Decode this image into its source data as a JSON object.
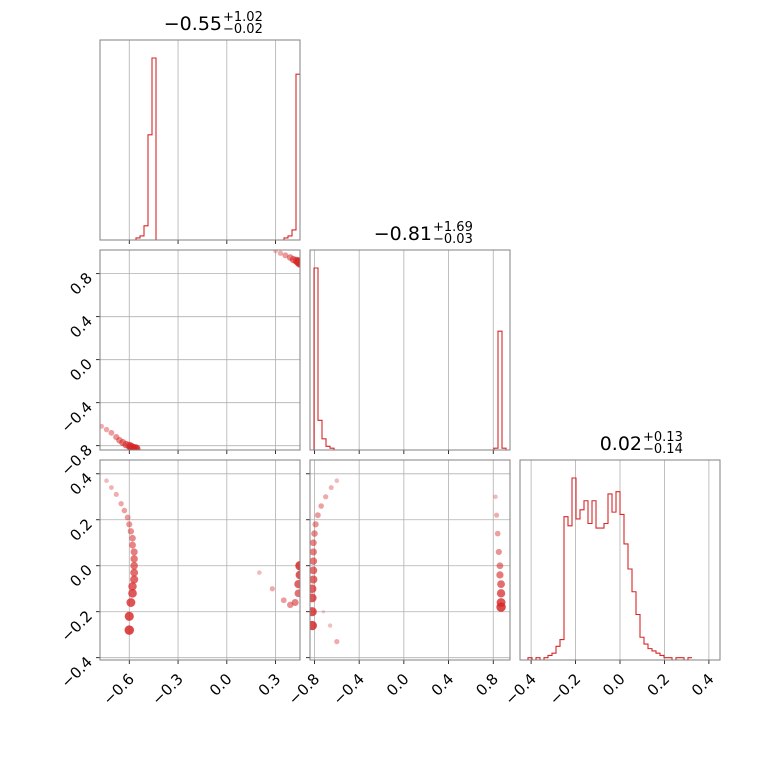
{
  "colors": {
    "series": "#d62728",
    "grid": "#b0b0b0",
    "axes": "#808080"
  },
  "chart_data": [
    {
      "type": "histogram",
      "panel": "p00",
      "parameter": 0,
      "title": {
        "value": "−0.55",
        "plus": "+1.02",
        "minus": "−0.02"
      },
      "xlim": [
        -0.78,
        0.45
      ],
      "grid": true,
      "x_ticks": [
        -0.6,
        -0.3,
        0.0,
        0.3
      ],
      "bins": {
        "start": -0.78,
        "width": 0.0246,
        "counts": [
          0,
          0,
          0,
          0,
          0,
          0,
          0,
          0,
          0,
          0.01,
          0.02,
          0.07,
          0.52,
          0.9,
          0,
          0,
          0,
          0,
          0,
          0,
          0,
          0,
          0,
          0,
          0,
          0,
          0,
          0,
          0,
          0,
          0,
          0,
          0,
          0,
          0,
          0,
          0,
          0,
          0,
          0,
          0,
          0,
          0,
          0,
          0,
          0,
          0.01,
          0.02,
          0.05,
          0.82
        ]
      }
    },
    {
      "type": "histogram",
      "panel": "p11",
      "parameter": 1,
      "title": {
        "value": "−0.81",
        "plus": "+1.69",
        "minus": "−0.03"
      },
      "xlim": [
        -0.84,
        0.95
      ],
      "grid": true,
      "x_ticks": [
        -0.8,
        -0.4,
        0.0,
        0.4,
        0.8
      ],
      "bins": {
        "start": -0.84,
        "width": 0.0358,
        "counts": [
          0,
          0.98,
          0.16,
          0.06,
          0.02,
          0.01,
          0,
          0,
          0,
          0,
          0,
          0,
          0,
          0,
          0,
          0,
          0,
          0,
          0,
          0,
          0,
          0,
          0,
          0,
          0,
          0,
          0,
          0,
          0,
          0,
          0,
          0,
          0,
          0,
          0,
          0,
          0,
          0,
          0,
          0,
          0,
          0,
          0,
          0,
          0,
          0,
          0.01,
          0.64,
          0.01,
          0
        ]
      }
    },
    {
      "type": "histogram",
      "panel": "p22",
      "parameter": 2,
      "title": {
        "value": "0.02",
        "plus": "+0.13",
        "minus": "−0.14"
      },
      "xlim": [
        -0.45,
        0.45
      ],
      "grid": true,
      "x_ticks": [
        -0.4,
        -0.2,
        0.0,
        0.2,
        0.4
      ],
      "tick_labels": [
        "−0.4",
        "−0.2",
        "0.0",
        "0.2",
        "0.4"
      ],
      "bins": {
        "start": -0.45,
        "width": 0.018,
        "counts": [
          0,
          0,
          0.01,
          0,
          0.01,
          0,
          0.01,
          0.02,
          0.03,
          0.06,
          0.09,
          0.63,
          0.59,
          0.8,
          0.62,
          0.66,
          0.7,
          0.6,
          0.7,
          0.58,
          0.58,
          0.6,
          0.73,
          0.65,
          0.74,
          0.64,
          0.51,
          0.4,
          0.3,
          0.2,
          0.1,
          0.07,
          0.05,
          0.04,
          0.03,
          0.02,
          0.01,
          0.01,
          0,
          0.01,
          0.01,
          0,
          0.01
        ]
      }
    },
    {
      "type": "scatter",
      "panel": "p10",
      "x_parameter": 0,
      "y_parameter": 1,
      "xlim": [
        -0.78,
        0.45
      ],
      "ylim": [
        -0.84,
        1.02
      ],
      "grid": true,
      "y_ticks": [
        -0.8,
        -0.4,
        0.0,
        0.4,
        0.8
      ],
      "y_tick_labels": [
        "−0.8",
        "−0.4",
        "0.0",
        "0.4",
        "0.8"
      ],
      "clusters": [
        {
          "points": [
            [
              -0.8,
              -0.59
            ],
            [
              -0.77,
              -0.62
            ],
            [
              -0.74,
              -0.65
            ],
            [
              -0.71,
              -0.68
            ],
            [
              -0.68,
              -0.72
            ],
            [
              -0.66,
              -0.75
            ],
            [
              -0.64,
              -0.77
            ],
            [
              -0.62,
              -0.79
            ],
            [
              -0.6,
              -0.8
            ],
            [
              -0.59,
              -0.81
            ],
            [
              -0.58,
              -0.82
            ],
            [
              -0.57,
              -0.83
            ],
            [
              -0.56,
              -0.83
            ]
          ],
          "strength": 1
        },
        {
          "points": [
            [
              0.3,
              1.01
            ],
            [
              0.33,
              0.99
            ],
            [
              0.36,
              0.97
            ],
            [
              0.39,
              0.95
            ],
            [
              0.41,
              0.93
            ],
            [
              0.43,
              0.92
            ],
            [
              0.44,
              0.91
            ],
            [
              0.45,
              0.9
            ]
          ],
          "strength": 1
        }
      ]
    },
    {
      "type": "scatter",
      "panel": "p20",
      "x_parameter": 0,
      "y_parameter": 2,
      "xlim": [
        -0.78,
        0.45
      ],
      "ylim": [
        -0.41,
        0.46
      ],
      "grid": true,
      "x_ticks": [
        -0.6,
        -0.3,
        0.0,
        0.3
      ],
      "x_tick_labels": [
        "−0.6",
        "−0.3",
        "0.0",
        "0.3"
      ],
      "y_ticks": [
        -0.4,
        -0.2,
        0.0,
        0.2,
        0.4
      ],
      "y_tick_labels": [
        "−0.4",
        "−0.2",
        "0.0",
        "0.2",
        "0.4"
      ],
      "clusters": [
        {
          "points": [
            [
              -0.74,
              0.37
            ],
            [
              -0.71,
              0.34
            ],
            [
              -0.68,
              0.31
            ],
            [
              -0.65,
              0.27
            ],
            [
              -0.63,
              0.24
            ],
            [
              -0.61,
              0.21
            ],
            [
              -0.6,
              0.18
            ],
            [
              -0.59,
              0.15
            ],
            [
              -0.58,
              0.12
            ],
            [
              -0.58,
              0.09
            ],
            [
              -0.57,
              0.06
            ],
            [
              -0.57,
              0.03
            ],
            [
              -0.57,
              0.0
            ],
            [
              -0.57,
              -0.03
            ],
            [
              -0.57,
              -0.06
            ],
            [
              -0.58,
              -0.09
            ],
            [
              -0.58,
              -0.12
            ],
            [
              -0.59,
              -0.16
            ],
            [
              -0.6,
              -0.22
            ],
            [
              -0.6,
              -0.28
            ]
          ],
          "strength": 1
        },
        {
          "points": [
            [
              0.2,
              -0.03
            ],
            [
              0.28,
              -0.1
            ],
            [
              0.35,
              -0.15
            ],
            [
              0.39,
              -0.17
            ],
            [
              0.42,
              -0.16
            ],
            [
              0.44,
              -0.12
            ],
            [
              0.44,
              -0.08
            ],
            [
              0.45,
              -0.04
            ],
            [
              0.45,
              0.0
            ]
          ],
          "strength": 1
        }
      ]
    },
    {
      "type": "scatter",
      "panel": "p21",
      "x_parameter": 1,
      "y_parameter": 2,
      "xlim": [
        -0.84,
        0.95
      ],
      "ylim": [
        -0.41,
        0.46
      ],
      "grid": true,
      "x_ticks": [
        -0.8,
        -0.4,
        0.0,
        0.4,
        0.8
      ],
      "x_tick_labels": [
        "−0.8",
        "−0.4",
        "0.0",
        "0.4",
        "0.8"
      ],
      "clusters": [
        {
          "points": [
            [
              -0.6,
              0.37
            ],
            [
              -0.65,
              0.34
            ],
            [
              -0.7,
              0.3
            ],
            [
              -0.74,
              0.26
            ],
            [
              -0.77,
              0.22
            ],
            [
              -0.79,
              0.18
            ],
            [
              -0.8,
              0.14
            ],
            [
              -0.81,
              0.1
            ],
            [
              -0.81,
              0.06
            ],
            [
              -0.81,
              0.02
            ],
            [
              -0.81,
              -0.02
            ],
            [
              -0.81,
              -0.06
            ],
            [
              -0.82,
              -0.1
            ],
            [
              -0.82,
              -0.14
            ],
            [
              -0.82,
              -0.2
            ],
            [
              -0.82,
              -0.26
            ]
          ],
          "strength": 1
        },
        {
          "points": [
            [
              -0.72,
              -0.2
            ],
            [
              -0.66,
              -0.26
            ],
            [
              -0.6,
              -0.33
            ]
          ],
          "strength": 0.35
        },
        {
          "points": [
            [
              0.82,
              0.3
            ],
            [
              0.83,
              0.22
            ],
            [
              0.84,
              0.14
            ],
            [
              0.85,
              0.06
            ],
            [
              0.86,
              0.0
            ],
            [
              0.86,
              -0.04
            ],
            [
              0.87,
              -0.08
            ],
            [
              0.87,
              -0.12
            ],
            [
              0.87,
              -0.16
            ],
            [
              0.87,
              -0.18
            ]
          ],
          "strength": 1
        }
      ]
    }
  ]
}
